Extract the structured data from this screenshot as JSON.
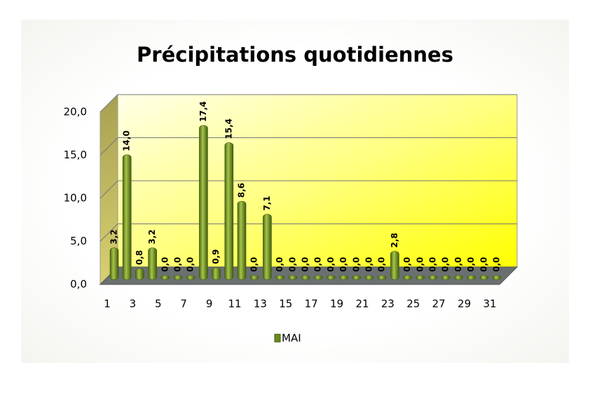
{
  "chart_data": {
    "type": "bar",
    "title": "Précipitations quotidiennes",
    "categories": [
      "1",
      null,
      "3",
      null,
      "5",
      null,
      "7",
      null,
      "9",
      null,
      "11",
      null,
      "13",
      null,
      "15",
      null,
      "17",
      null,
      "19",
      null,
      "21",
      null,
      "23",
      null,
      "25",
      null,
      "27",
      null,
      "29",
      null,
      "31"
    ],
    "series": [
      {
        "name": "MAI",
        "color": "#7a9a2a",
        "values": [
          3.2,
          14.0,
          0.8,
          3.2,
          0,
          0,
          0,
          17.4,
          0.9,
          15.4,
          8.6,
          0,
          7.1,
          0,
          0,
          0,
          0,
          0,
          0,
          0,
          0,
          0,
          2.8,
          0,
          0,
          0,
          0,
          0,
          0,
          0,
          0
        ],
        "value_labels": [
          "3,2",
          "14,0",
          "0,8",
          "3,2",
          "0,0",
          "0,0",
          "0,0",
          "17,4",
          "0,9",
          "15,4",
          "8,6",
          "0,0",
          "7,1",
          "0,0",
          "0,0",
          "0,0",
          "0,0",
          "0,0",
          "0,0",
          "0,0",
          "0,0",
          "0,0",
          "2,8",
          "0,0",
          "0,0",
          "0,0",
          "0,0",
          "0,0",
          "0,0",
          "0,0",
          "0,0"
        ]
      }
    ],
    "ylim": [
      0,
      20
    ],
    "yticks": [
      {
        "value": 0,
        "label": "0,0"
      },
      {
        "value": 5,
        "label": "5,0"
      },
      {
        "value": 10,
        "label": "10,0"
      },
      {
        "value": 15,
        "label": "15,0"
      },
      {
        "value": 20,
        "label": "20,0"
      }
    ],
    "grid": true
  }
}
